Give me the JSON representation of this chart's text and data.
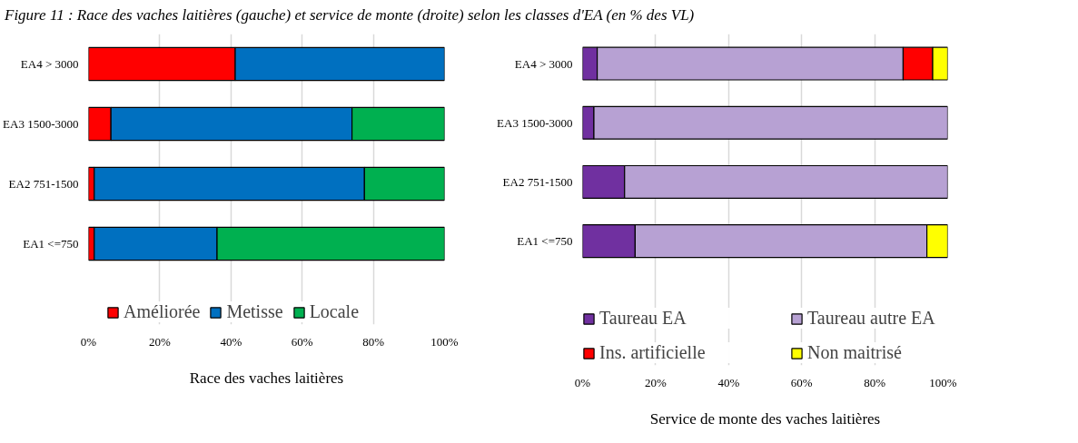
{
  "chart_data": [
    {
      "type": "bar",
      "orientation": "horizontal",
      "stacked": true,
      "annotations": [
        "Figure 11 : Race des vaches laitières (gauche) et service de monte (droite) selon les classes d'EA (en % des VL)"
      ],
      "xlabel": "Race des vaches laitières",
      "categories": [
        "EA4 > 3000",
        "EA3 1500-3000",
        "EA2 751-1500",
        "EA1 <=750"
      ],
      "series": [
        {
          "name": "Améliorée",
          "color": "#ff0000",
          "values": [
            41.2,
            6.3,
            1.6,
            1.6
          ]
        },
        {
          "name": "Metisse",
          "color": "#0070c0",
          "values": [
            58.8,
            67.7,
            75.9,
            34.5
          ]
        },
        {
          "name": "Locale",
          "color": "#00b050",
          "values": [
            null,
            26.0,
            22.5,
            63.9
          ]
        }
      ],
      "xlim": [
        0,
        100
      ],
      "xticks": [
        {
          "value": 0,
          "label": "0%"
        },
        {
          "value": 20,
          "label": "20%"
        },
        {
          "value": 40,
          "label": "40%"
        },
        {
          "value": 60,
          "label": "60%"
        },
        {
          "value": 80,
          "label": "80%"
        },
        {
          "value": 100,
          "label": "100%"
        }
      ],
      "grid": "x",
      "legend": "bottom"
    },
    {
      "type": "bar",
      "orientation": "horizontal",
      "stacked": true,
      "xlabel": "Service de monte des vaches laitières",
      "categories": [
        "EA4 > 3000",
        "EA3 1500-3000",
        "EA2 751-1500",
        "EA1 <=750"
      ],
      "series": [
        {
          "name": "Taureau EA",
          "color": "#7030a0",
          "values": [
            4.0,
            3.1,
            11.5,
            14.4
          ]
        },
        {
          "name": "Taureau autre EA",
          "color": "#b7a1d3",
          "values": [
            83.8,
            96.9,
            88.5,
            79.9
          ]
        },
        {
          "name": "Ins. artificielle",
          "color": "#ff0000",
          "values": [
            8.1,
            null,
            null,
            null
          ]
        },
        {
          "name": "Non maitrisé",
          "color": "#ffff00",
          "values": [
            4.1,
            null,
            null,
            5.7
          ]
        }
      ],
      "xlim": [
        0,
        100
      ],
      "xticks": [
        {
          "value": 0,
          "label": "0%"
        },
        {
          "value": 20,
          "label": "20%"
        },
        {
          "value": 40,
          "label": "40%"
        },
        {
          "value": 60,
          "label": "60%"
        },
        {
          "value": 80,
          "label": "80%"
        },
        {
          "value": 100,
          "label": "100%"
        }
      ],
      "grid": "x",
      "legend": "bottom"
    }
  ]
}
